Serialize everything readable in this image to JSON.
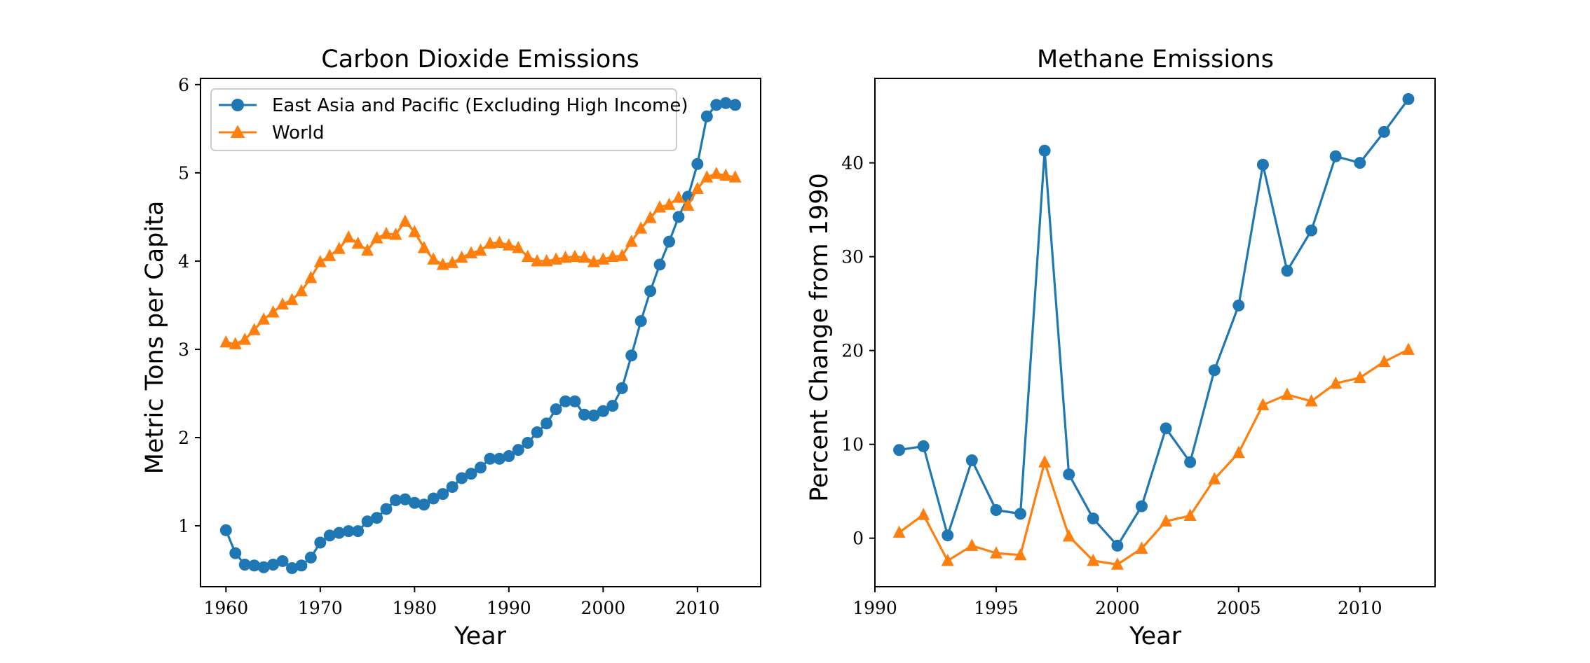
{
  "colors": {
    "blue": "#1f77b4",
    "orange": "#ff7f0e"
  },
  "chart_data": [
    {
      "type": "line",
      "title": "Carbon Dioxide Emissions",
      "xlabel": "Year",
      "ylabel": "Metric Tons per Capita",
      "xlim": [
        1957.3,
        2016.7
      ],
      "ylim": [
        0.31,
        6.07
      ],
      "xticks": [
        1960,
        1970,
        1980,
        1990,
        2000,
        2010
      ],
      "yticks": [
        1,
        2,
        3,
        4,
        5,
        6
      ],
      "legend": "top-left",
      "series": [
        {
          "name": "East Asia and Pacific (Excluding High Income)",
          "marker": "circle",
          "color": "#1f77b4",
          "x": [
            1960,
            1961,
            1962,
            1963,
            1964,
            1965,
            1966,
            1967,
            1968,
            1969,
            1970,
            1971,
            1972,
            1973,
            1974,
            1975,
            1976,
            1977,
            1978,
            1979,
            1980,
            1981,
            1982,
            1983,
            1984,
            1985,
            1986,
            1987,
            1988,
            1989,
            1990,
            1991,
            1992,
            1993,
            1994,
            1995,
            1996,
            1997,
            1998,
            1999,
            2000,
            2001,
            2002,
            2003,
            2004,
            2005,
            2006,
            2007,
            2008,
            2009,
            2010,
            2011,
            2012,
            2013,
            2014
          ],
          "values": [
            0.95,
            0.69,
            0.56,
            0.55,
            0.53,
            0.56,
            0.6,
            0.52,
            0.55,
            0.64,
            0.81,
            0.89,
            0.92,
            0.94,
            0.94,
            1.05,
            1.09,
            1.19,
            1.29,
            1.3,
            1.26,
            1.24,
            1.31,
            1.36,
            1.44,
            1.54,
            1.59,
            1.66,
            1.76,
            1.76,
            1.79,
            1.86,
            1.94,
            2.06,
            2.16,
            2.32,
            2.41,
            2.41,
            2.26,
            2.25,
            2.3,
            2.36,
            2.56,
            2.93,
            3.32,
            3.66,
            3.96,
            4.22,
            4.5,
            4.73,
            5.1,
            5.64,
            5.77,
            5.79,
            5.77
          ]
        },
        {
          "name": "World",
          "marker": "triangle",
          "color": "#ff7f0e",
          "x": [
            1960,
            1961,
            1962,
            1963,
            1964,
            1965,
            1966,
            1967,
            1968,
            1969,
            1970,
            1971,
            1972,
            1973,
            1974,
            1975,
            1976,
            1977,
            1978,
            1979,
            1980,
            1981,
            1982,
            1983,
            1984,
            1985,
            1986,
            1987,
            1988,
            1989,
            1990,
            1991,
            1992,
            1993,
            1994,
            1995,
            1996,
            1997,
            1998,
            1999,
            2000,
            2001,
            2002,
            2003,
            2004,
            2005,
            2006,
            2007,
            2008,
            2009,
            2010,
            2011,
            2012,
            2013,
            2014
          ],
          "values": [
            3.08,
            3.06,
            3.11,
            3.22,
            3.34,
            3.42,
            3.51,
            3.56,
            3.66,
            3.81,
            3.99,
            4.06,
            4.14,
            4.27,
            4.2,
            4.12,
            4.26,
            4.31,
            4.3,
            4.45,
            4.33,
            4.15,
            4.02,
            3.96,
            3.98,
            4.04,
            4.09,
            4.12,
            4.2,
            4.21,
            4.18,
            4.15,
            4.05,
            4.0,
            4.0,
            4.02,
            4.04,
            4.05,
            4.04,
            3.99,
            4.02,
            4.05,
            4.06,
            4.22,
            4.37,
            4.49,
            4.61,
            4.64,
            4.72,
            4.63,
            4.82,
            4.95,
            4.99,
            4.97,
            4.95
          ]
        }
      ]
    },
    {
      "type": "line",
      "title": "Methane Emissions",
      "xlabel": "Year",
      "ylabel": "Percent Change from 1990",
      "xlim": [
        1990.0,
        2013.1
      ],
      "ylim": [
        -5.17,
        49.0
      ],
      "xticks": [
        1990,
        1995,
        2000,
        2005,
        2010
      ],
      "yticks": [
        0,
        10,
        20,
        30,
        40
      ],
      "series": [
        {
          "name": "East Asia and Pacific (Excluding High Income)",
          "marker": "circle",
          "color": "#1f77b4",
          "x": [
            1991,
            1992,
            1993,
            1994,
            1995,
            1996,
            1997,
            1998,
            1999,
            2000,
            2001,
            2002,
            2003,
            2004,
            2005,
            2006,
            2007,
            2008,
            2009,
            2010,
            2011,
            2012
          ],
          "values": [
            9.4,
            9.8,
            0.3,
            8.3,
            3.0,
            2.6,
            41.3,
            6.8,
            2.1,
            -0.8,
            3.4,
            11.7,
            8.1,
            17.9,
            24.8,
            39.8,
            28.5,
            32.8,
            40.7,
            40.0,
            43.3,
            46.8
          ]
        },
        {
          "name": "World",
          "marker": "triangle",
          "color": "#ff7f0e",
          "x": [
            1991,
            1992,
            1993,
            1994,
            1995,
            1996,
            1997,
            1998,
            1999,
            2000,
            2001,
            2002,
            2003,
            2004,
            2005,
            2006,
            2007,
            2008,
            2009,
            2010,
            2011,
            2012
          ],
          "values": [
            0.6,
            2.5,
            -2.4,
            -0.8,
            -1.6,
            -1.8,
            8.1,
            0.2,
            -2.4,
            -2.8,
            -1.1,
            1.8,
            2.4,
            6.3,
            9.1,
            14.2,
            15.3,
            14.6,
            16.5,
            17.1,
            18.8,
            20.1
          ]
        }
      ]
    }
  ]
}
